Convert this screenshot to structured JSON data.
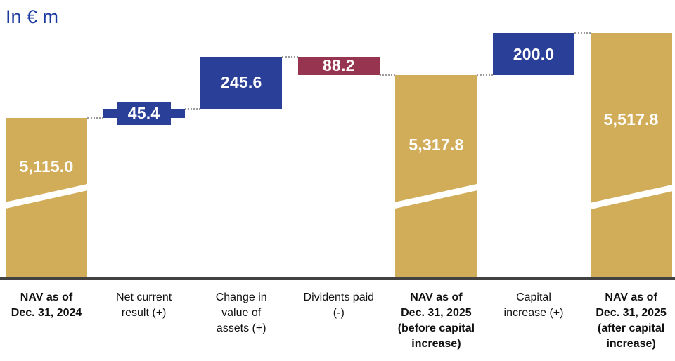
{
  "chart_data": {
    "type": "waterfall",
    "title": "In € m",
    "columns": [
      {
        "name": "NAV as of\nDec. 31, 2024",
        "role": "total",
        "value": 5115.0,
        "label": "5,115.0",
        "color": "gold",
        "axis_break": true
      },
      {
        "name": "Net current\nresult (+)",
        "role": "increase",
        "value": 45.4,
        "label": "45.4",
        "color": "blue",
        "small": true
      },
      {
        "name": "Change in\nvalue of\nassets (+)",
        "role": "increase",
        "value": 245.6,
        "label": "245.6",
        "color": "blue"
      },
      {
        "name": "Dividents paid\n(-)",
        "role": "decrease",
        "value": 88.2,
        "label": "88.2",
        "color": "maroon"
      },
      {
        "name": "NAV as of\nDec. 31, 2025\n(before capital\nincrease)",
        "role": "total",
        "value": 5317.8,
        "label": "5,317.8",
        "color": "gold",
        "axis_break": true
      },
      {
        "name": "Capital\nincrease (+)",
        "role": "increase",
        "value": 200.0,
        "label": "200.0",
        "color": "blue"
      },
      {
        "name": "NAV as of\nDec. 31, 2025\n(after capital\nincrease)",
        "role": "total",
        "value": 5517.8,
        "label": "5,517.8",
        "color": "gold",
        "axis_break": true
      }
    ],
    "colors": {
      "gold": "#D1AD5A",
      "blue": "#2A4098",
      "maroon": "#97344F",
      "title_text": "#1B3AA0",
      "connector": "#9B9B9B",
      "baseline": "#424242",
      "bar_label_text": "#FFFFFF",
      "category_text": "#111111"
    },
    "layout_hints": {
      "value_axis_visible": false,
      "connectors": "dotted",
      "totals_have_axis_break": true,
      "legend": "none"
    }
  }
}
